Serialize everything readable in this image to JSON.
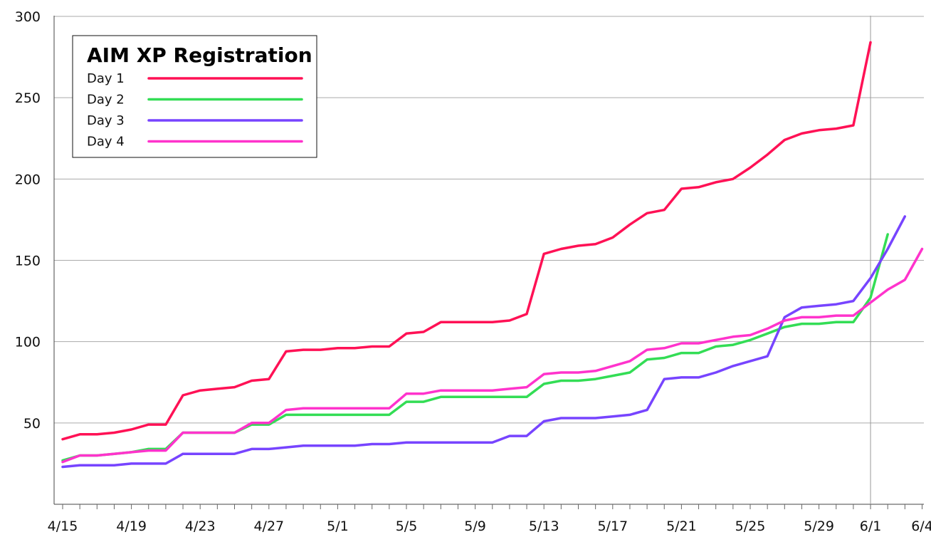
{
  "chart_data": {
    "type": "line",
    "title": "AIM XP Registration",
    "xlabel": "",
    "ylabel": "",
    "ylim": [
      0,
      300
    ],
    "grid": "horizontal",
    "legend_position": "top-left",
    "y_ticks": [
      50,
      100,
      150,
      200,
      250,
      300
    ],
    "x_tick_labels": [
      "4/15",
      "4/19",
      "4/23",
      "4/27",
      "5/1",
      "5/5",
      "5/9",
      "5/13",
      "5/17",
      "5/21",
      "5/25",
      "5/29",
      "6/1",
      "6/4"
    ],
    "x_tick_day_index": [
      0,
      4,
      8,
      12,
      16,
      20,
      24,
      28,
      32,
      36,
      40,
      44,
      47,
      50
    ],
    "reference_line_day_index": 47,
    "series": [
      {
        "name": "Day 1",
        "color": "#ff1155",
        "values": [
          40,
          43,
          43,
          44,
          46,
          49,
          49,
          67,
          70,
          71,
          72,
          76,
          77,
          94,
          95,
          95,
          96,
          96,
          97,
          97,
          105,
          106,
          112,
          112,
          112,
          112,
          113,
          117,
          154,
          157,
          159,
          160,
          164,
          172,
          179,
          181,
          194,
          195,
          198,
          200,
          207,
          215,
          224,
          228,
          230,
          231,
          233,
          284
        ]
      },
      {
        "name": "Day 2",
        "color": "#33dd55",
        "values": [
          27,
          30,
          30,
          31,
          32,
          34,
          34,
          44,
          44,
          44,
          44,
          49,
          49,
          55,
          55,
          55,
          55,
          55,
          55,
          55,
          63,
          63,
          66,
          66,
          66,
          66,
          66,
          66,
          74,
          76,
          76,
          77,
          79,
          81,
          89,
          90,
          93,
          93,
          97,
          98,
          101,
          105,
          109,
          111,
          111,
          112,
          112,
          127,
          166
        ]
      },
      {
        "name": "Day 3",
        "color": "#7744ff",
        "values": [
          23,
          24,
          24,
          24,
          25,
          25,
          25,
          31,
          31,
          31,
          31,
          34,
          34,
          35,
          36,
          36,
          36,
          36,
          37,
          37,
          38,
          38,
          38,
          38,
          38,
          38,
          42,
          42,
          51,
          53,
          53,
          53,
          54,
          55,
          58,
          77,
          78,
          78,
          81,
          85,
          88,
          91,
          115,
          121,
          122,
          123,
          125,
          139,
          157,
          177
        ]
      },
      {
        "name": "Day 4",
        "color": "#ff33cc",
        "values": [
          26,
          30,
          30,
          31,
          32,
          33,
          33,
          44,
          44,
          44,
          44,
          50,
          50,
          58,
          59,
          59,
          59,
          59,
          59,
          59,
          68,
          68,
          70,
          70,
          70,
          70,
          71,
          72,
          80,
          81,
          81,
          82,
          85,
          88,
          95,
          96,
          99,
          99,
          101,
          103,
          104,
          108,
          113,
          115,
          115,
          116,
          116,
          124,
          132,
          138,
          157
        ]
      }
    ]
  }
}
